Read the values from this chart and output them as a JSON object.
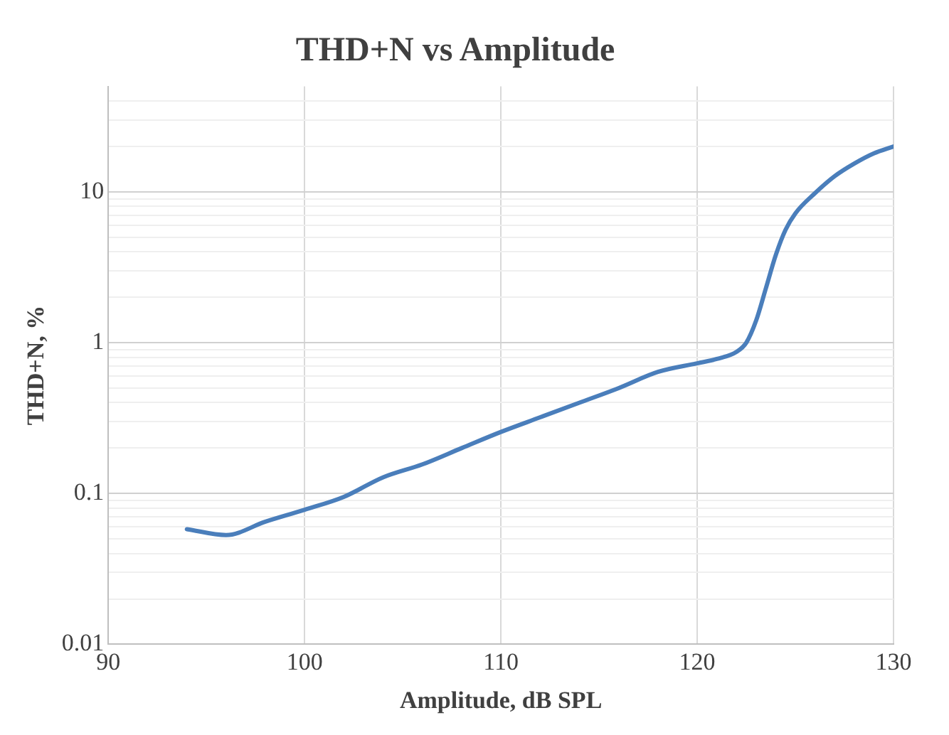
{
  "chart_data": {
    "type": "line",
    "title": "THD+N vs Amplitude",
    "xlabel": "Amplitude, dB SPL",
    "ylabel": "THD+N, %",
    "x": [
      94,
      96,
      98,
      100,
      102,
      104,
      106,
      108,
      110,
      112,
      114,
      116,
      118,
      120,
      121,
      122,
      122.5,
      123,
      123.5,
      124,
      124.5,
      125,
      126,
      127,
      128,
      129,
      130
    ],
    "series": [
      {
        "color": "#4a7ebb",
        "values": [
          0.058,
          0.053,
          0.065,
          0.078,
          0.095,
          0.128,
          0.156,
          0.2,
          0.256,
          0.32,
          0.4,
          0.5,
          0.64,
          0.73,
          0.78,
          0.87,
          1.0,
          1.4,
          2.3,
          3.8,
          5.6,
          7.2,
          9.8,
          12.7,
          15.4,
          18,
          20
        ]
      }
    ],
    "xlim": [
      90,
      130
    ],
    "xticks": [
      90,
      100,
      110,
      120,
      130
    ],
    "ylim": [
      0.01,
      50
    ],
    "yticks": [
      0.01,
      {
        "value": 0.02,
        "label": null
      },
      {
        "value": 0.03,
        "label": null
      },
      {
        "value": 0.04,
        "label": null
      },
      {
        "value": 0.05,
        "label": null
      },
      {
        "value": 0.06,
        "label": null
      },
      {
        "value": 0.07,
        "label": null
      },
      {
        "value": 0.08,
        "label": null
      },
      {
        "value": 0.09,
        "label": null
      },
      0.1,
      {
        "value": 0.2,
        "label": null
      },
      {
        "value": 0.3,
        "label": null
      },
      {
        "value": 0.4,
        "label": null
      },
      {
        "value": 0.5,
        "label": null
      },
      {
        "value": 0.6,
        "label": null
      },
      {
        "value": 0.7,
        "label": null
      },
      {
        "value": 0.8,
        "label": null
      },
      {
        "value": 0.9,
        "label": null
      },
      1,
      {
        "value": 2,
        "label": null
      },
      {
        "value": 3,
        "label": null
      },
      {
        "value": 4,
        "label": null
      },
      {
        "value": 5,
        "label": null
      },
      {
        "value": 6,
        "label": null
      },
      {
        "value": 7,
        "label": null
      },
      {
        "value": 8,
        "label": null
      },
      {
        "value": 9,
        "label": null
      },
      10,
      {
        "value": 20,
        "label": null
      },
      {
        "value": 30,
        "label": null
      },
      {
        "value": 40,
        "label": null
      }
    ],
    "log": "y",
    "grid": true,
    "legend": false,
    "marker": "none",
    "line_style": "solid"
  }
}
